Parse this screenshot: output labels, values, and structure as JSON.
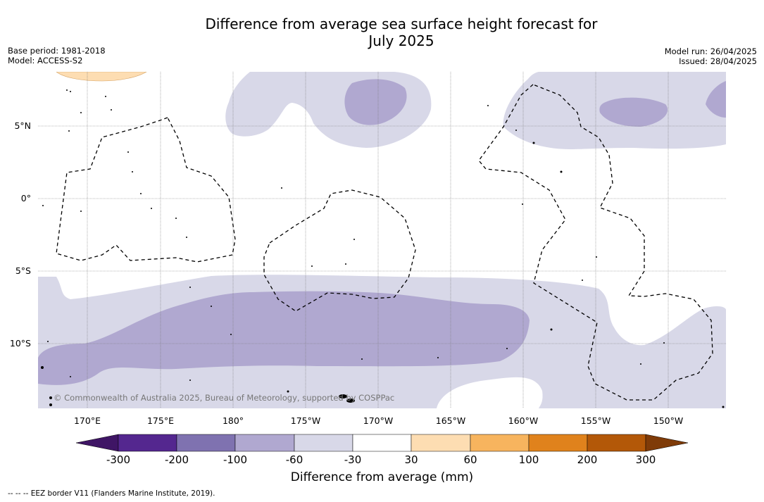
{
  "header": {
    "title_line1": "Difference from average sea surface height forecast for",
    "title_line2": "July 2025",
    "base_period": "Base period: 1981-2018",
    "model": "Model: ACCESS-S2",
    "model_run": "Model run: 26/04/2025",
    "issued": "Issued: 28/04/2025"
  },
  "map": {
    "lon_labels": [
      "170°E",
      "175°E",
      "180°",
      "175°W",
      "170°W",
      "165°W",
      "160°W",
      "155°W",
      "150°W"
    ],
    "lat_labels": [
      "5°N",
      "0°",
      "5°S",
      "10°S"
    ],
    "copyright": "© Commonwealth of Australia 2025, Bureau of Meteorology, supported by COSPPac",
    "colors": {
      "light_purple": "#d8d8e8",
      "mid_purple": "#b0a8d0",
      "light_orange": "#fdddb2"
    }
  },
  "colorbar": {
    "title": "Difference from average (mm)",
    "ticks": [
      "-300",
      "-200",
      "-100",
      "-60",
      "-30",
      "30",
      "60",
      "100",
      "200",
      "300"
    ],
    "colors": [
      "#3f1565",
      "#54278f",
      "#7f72b0",
      "#b0a8d0",
      "#d8d8e8",
      "#ffffff",
      "#fdddb2",
      "#f7b45e",
      "#e0821c",
      "#b35808",
      "#7f3b08"
    ]
  },
  "footer": {
    "eez_note": "--  --  -- EEZ border V11 (Flanders Marine Institute, 2019)."
  }
}
